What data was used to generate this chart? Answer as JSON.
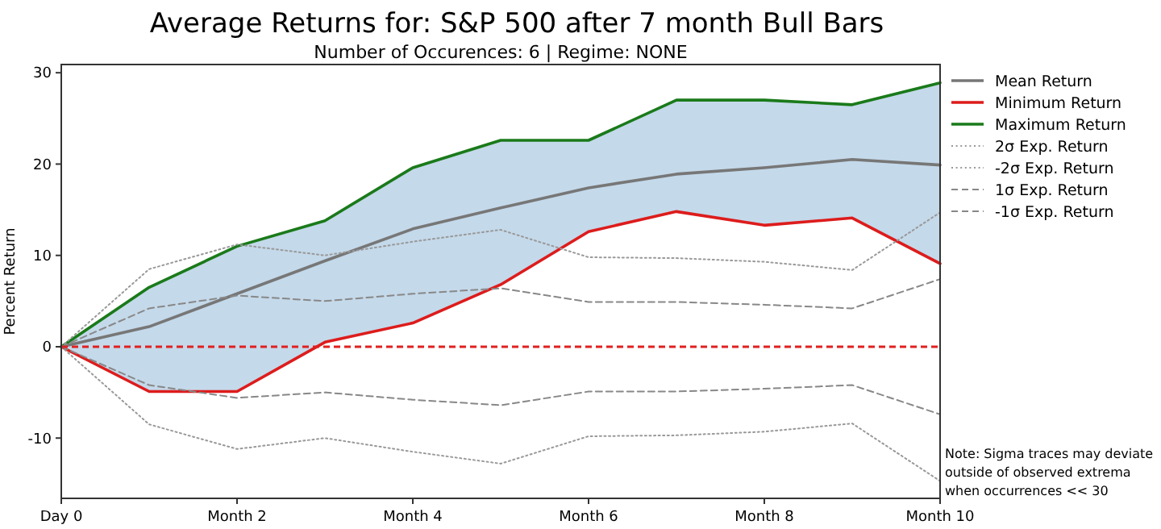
{
  "chart_data": {
    "type": "line",
    "title": "Average Returns for: S&P 500 after 7 month Bull Bars",
    "subtitle": "Number of Occurences: 6 | Regime: NONE",
    "ylabel": "Percent Return",
    "categories": [
      "Day 0",
      null,
      "Month 2",
      null,
      "Month 4",
      null,
      "Month 6",
      null,
      "Month 8",
      null,
      "Month 10"
    ],
    "ylim": [
      -16.6,
      30.9
    ],
    "yticks": [
      -10,
      0,
      10,
      20,
      30
    ],
    "grid": false,
    "legend": "right",
    "marker": "none",
    "series": [
      {
        "name": "Mean Return",
        "color": "#777777",
        "line_style": "solid",
        "values": [
          0,
          2.2,
          5.8,
          9.4,
          12.9,
          15.2,
          17.4,
          18.9,
          19.6,
          20.5,
          19.9
        ],
        "lower": [
          0,
          -4.9,
          -4.9,
          0.5,
          2.6,
          6.8,
          12.6,
          14.8,
          13.3,
          14.1,
          9.1
        ],
        "upper": [
          0,
          6.5,
          11.0,
          13.8,
          19.6,
          22.6,
          22.6,
          27.0,
          27.0,
          26.5,
          28.9
        ]
      },
      {
        "name": "Minimum Return",
        "color": "#dd1c1c",
        "line_style": "solid",
        "values": [
          0,
          -4.9,
          -4.9,
          0.5,
          2.6,
          6.8,
          12.6,
          14.8,
          13.3,
          14.1,
          9.1
        ]
      },
      {
        "name": "Maximum Return",
        "color": "#1a7a1a",
        "line_style": "solid",
        "values": [
          0,
          6.5,
          11.0,
          13.8,
          19.6,
          22.6,
          22.6,
          27.0,
          27.0,
          26.5,
          28.9
        ]
      },
      {
        "name": "2σ Exp. Return",
        "color": "#999999",
        "line_style": "dotted",
        "values": [
          0,
          8.5,
          11.2,
          10.0,
          11.5,
          12.8,
          9.8,
          9.7,
          9.3,
          8.4,
          14.7
        ]
      },
      {
        "name": "-2σ Exp. Return",
        "color": "#999999",
        "line_style": "dotted",
        "values": [
          0,
          -8.5,
          -11.2,
          -10.0,
          -11.5,
          -12.8,
          -9.8,
          -9.7,
          -9.3,
          -8.4,
          -14.7
        ]
      },
      {
        "name": "1σ Exp. Return",
        "color": "#888888",
        "line_style": "dashed",
        "values": [
          0,
          4.2,
          5.6,
          5.0,
          5.8,
          6.4,
          4.9,
          4.9,
          4.6,
          4.2,
          7.4
        ]
      },
      {
        "name": "-1σ Exp. Return",
        "color": "#888888",
        "line_style": "dashed",
        "values": [
          0,
          -4.2,
          -5.6,
          -5.0,
          -5.8,
          -6.4,
          -4.9,
          -4.9,
          -4.6,
          -4.2,
          -7.4
        ]
      }
    ],
    "ref_lines": [
      {
        "axis": "y",
        "value": 0,
        "color": "#e02020",
        "line_style": "dashed"
      }
    ],
    "annotations": [
      "Note: Sigma traces may deviate outside of observed extrema when occurrences << 30"
    ]
  }
}
